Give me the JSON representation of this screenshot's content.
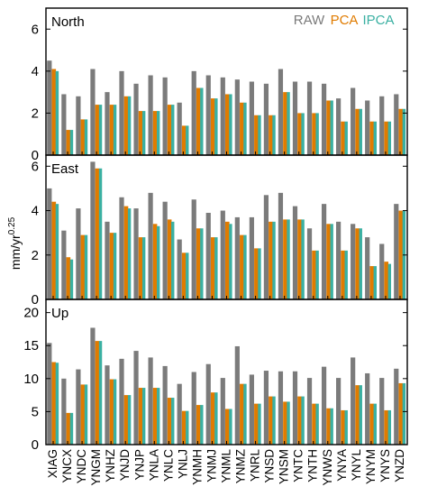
{
  "chart_data": {
    "type": "bar",
    "ylabel": "mm/yr",
    "ylabel_exponent": "0.25",
    "categories": [
      "XIAG",
      "YNCX",
      "YNDC",
      "YNGM",
      "YNHZ",
      "YNJD",
      "YNJP",
      "YNLA",
      "YNLC",
      "YNLJ",
      "YNMH",
      "YNMJ",
      "YNML",
      "YNMZ",
      "YNRL",
      "YNSD",
      "YNSM",
      "YNTC",
      "YNTH",
      "YNWS",
      "YNYA",
      "YNYL",
      "YNYM",
      "YNYS",
      "YNZD"
    ],
    "legend": {
      "placement": "top-right",
      "entries": [
        {
          "label": "RAW",
          "color": "#7b7b7b"
        },
        {
          "label": "PCA",
          "color": "#e07b00"
        },
        {
          "label": "IPCA",
          "color": "#3ab0a2"
        }
      ]
    },
    "panels": [
      {
        "title": "North",
        "ylim": [
          0,
          7
        ],
        "yticks": [
          0,
          2,
          4,
          6
        ],
        "series": [
          {
            "name": "RAW",
            "values": [
              4.5,
              2.9,
              2.8,
              4.1,
              3.0,
              4.0,
              3.4,
              3.8,
              3.7,
              2.5,
              4.0,
              3.8,
              3.7,
              3.6,
              3.5,
              3.4,
              4.1,
              3.5,
              3.5,
              3.4,
              2.7,
              3.2,
              2.6,
              2.8,
              2.9
            ]
          },
          {
            "name": "PCA",
            "values": [
              4.1,
              1.2,
              1.7,
              2.4,
              2.4,
              2.8,
              2.1,
              2.1,
              2.4,
              1.4,
              3.2,
              2.7,
              2.9,
              2.5,
              1.9,
              1.9,
              3.0,
              2.0,
              2.0,
              2.6,
              1.6,
              2.2,
              1.6,
              1.6,
              2.2
            ]
          },
          {
            "name": "IPCA",
            "values": [
              4.0,
              1.2,
              1.7,
              2.4,
              2.4,
              2.8,
              2.1,
              2.1,
              2.4,
              1.4,
              3.2,
              2.7,
              2.9,
              2.5,
              1.9,
              1.9,
              3.0,
              2.0,
              2.0,
              2.6,
              1.6,
              2.2,
              1.6,
              1.6,
              2.2
            ]
          }
        ]
      },
      {
        "title": "East",
        "ylim": [
          0,
          6.5
        ],
        "yticks": [
          0,
          2,
          4,
          6
        ],
        "series": [
          {
            "name": "RAW",
            "values": [
              5.0,
              3.1,
              4.1,
              6.2,
              3.5,
              4.6,
              4.1,
              4.8,
              4.4,
              2.7,
              4.5,
              3.9,
              4.0,
              3.7,
              3.7,
              4.7,
              4.8,
              4.2,
              3.2,
              4.3,
              3.5,
              3.4,
              2.8,
              2.5,
              4.3
            ]
          },
          {
            "name": "PCA",
            "values": [
              4.4,
              1.9,
              2.9,
              5.9,
              3.0,
              4.2,
              2.8,
              3.4,
              3.6,
              2.1,
              3.2,
              2.8,
              3.5,
              2.9,
              2.3,
              3.5,
              3.6,
              3.6,
              2.2,
              3.4,
              2.2,
              3.2,
              1.5,
              1.7,
              4.0
            ]
          },
          {
            "name": "IPCA",
            "values": [
              4.3,
              1.8,
              2.9,
              5.9,
              3.0,
              4.1,
              2.8,
              3.3,
              3.5,
              2.1,
              3.2,
              2.8,
              3.4,
              2.9,
              2.3,
              3.5,
              3.6,
              3.6,
              2.2,
              3.4,
              2.2,
              3.2,
              1.5,
              1.6,
              4.0
            ]
          }
        ]
      },
      {
        "title": "Up",
        "ylim": [
          0,
          22
        ],
        "yticks": [
          0,
          5,
          10,
          15,
          20
        ],
        "series": [
          {
            "name": "RAW",
            "values": [
              15.4,
              10.0,
              11.4,
              17.7,
              12.0,
              13.0,
              14.2,
              13.2,
              11.9,
              9.2,
              11.0,
              12.2,
              10.1,
              14.9,
              10.6,
              11.2,
              11.1,
              11.1,
              10.1,
              11.8,
              10.1,
              13.2,
              10.8,
              10.1,
              11.5
            ]
          },
          {
            "name": "PCA",
            "values": [
              12.5,
              4.8,
              9.1,
              15.7,
              9.9,
              7.5,
              8.6,
              8.6,
              7.1,
              5.1,
              6.0,
              7.9,
              5.4,
              9.2,
              6.2,
              7.3,
              6.5,
              7.3,
              6.2,
              5.5,
              5.2,
              9.0,
              6.2,
              5.2,
              9.3
            ]
          },
          {
            "name": "IPCA",
            "values": [
              12.4,
              4.8,
              9.1,
              15.7,
              9.9,
              7.5,
              8.6,
              8.6,
              7.1,
              5.1,
              6.0,
              7.9,
              5.4,
              9.2,
              6.2,
              7.3,
              6.5,
              7.3,
              6.2,
              5.5,
              5.2,
              9.0,
              6.2,
              5.2,
              9.3
            ]
          }
        ]
      }
    ]
  }
}
